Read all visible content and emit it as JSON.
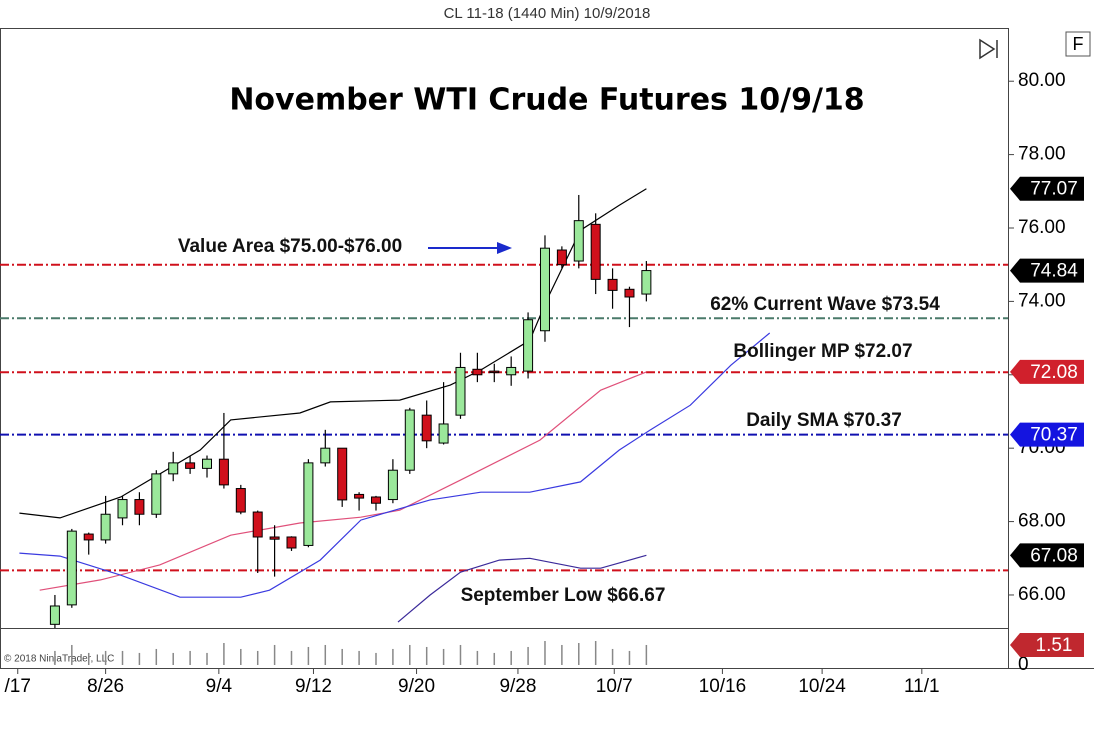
{
  "header": {
    "title": "CL 11-18 (1440 Min)  10/9/2018",
    "copyright": "© 2018 NinjaTrader, LLC",
    "button": "F"
  },
  "chart_data": [
    {
      "type": "candlestick",
      "title": "November WTI Crude Futures 10/9/18",
      "x": [
        2,
        3,
        4,
        5,
        6,
        7,
        8,
        9,
        10,
        11,
        12,
        13,
        14,
        15,
        16,
        17,
        18,
        19,
        20,
        21,
        22,
        23,
        24,
        25,
        26,
        27,
        28,
        29,
        30,
        31,
        32,
        33,
        34,
        35,
        36,
        37
      ],
      "open": [
        65.2,
        65.73,
        67.66,
        67.5,
        68.1,
        68.6,
        68.2,
        69.3,
        69.6,
        69.45,
        69.7,
        68.9,
        68.26,
        67.58,
        67.58,
        67.35,
        69.6,
        70.0,
        68.74,
        68.67,
        68.6,
        69.4,
        70.9,
        70.14,
        70.9,
        72.15,
        72.1,
        72.0,
        72.1,
        73.2,
        75.4,
        75.1,
        76.1,
        74.6,
        74.33,
        74.2
      ],
      "high": [
        66.0,
        67.8,
        67.7,
        68.7,
        68.7,
        68.8,
        69.4,
        69.9,
        69.8,
        69.8,
        70.96,
        69.0,
        68.3,
        67.9,
        67.6,
        69.7,
        70.5,
        70.0,
        68.8,
        68.7,
        69.7,
        71.1,
        71.3,
        71.8,
        72.6,
        72.6,
        72.3,
        72.5,
        73.7,
        75.8,
        75.5,
        76.9,
        76.4,
        74.9,
        74.4,
        75.1
      ],
      "low": [
        65.1,
        65.65,
        67.1,
        67.4,
        67.9,
        67.9,
        68.1,
        69.1,
        69.3,
        69.2,
        68.9,
        68.2,
        66.6,
        66.5,
        67.2,
        67.3,
        69.5,
        68.4,
        68.3,
        68.3,
        68.5,
        69.3,
        70.0,
        70.1,
        70.8,
        71.8,
        71.8,
        71.7,
        71.9,
        72.9,
        74.9,
        74.9,
        74.2,
        73.8,
        73.3,
        74.0
      ],
      "close": [
        65.7,
        67.74,
        67.5,
        68.2,
        68.6,
        68.2,
        69.3,
        69.6,
        69.45,
        69.7,
        69.0,
        68.26,
        67.58,
        67.52,
        67.28,
        69.6,
        70.0,
        68.59,
        68.64,
        68.5,
        69.4,
        71.04,
        70.2,
        70.66,
        72.2,
        72.0,
        72.06,
        72.2,
        73.5,
        75.45,
        75.0,
        76.2,
        74.6,
        74.3,
        74.12,
        74.84
      ],
      "up_color": "#9be89b",
      "down_color": "#d0101c",
      "xlim": [
        -1.25,
        58.4
      ],
      "xticks": [
        {
          "value": -0.2,
          "label": "/17"
        },
        {
          "value": 5,
          "label": "8/26"
        },
        {
          "value": 11.7,
          "label": "9/4"
        },
        {
          "value": 17.3,
          "label": "9/12"
        },
        {
          "value": 23.4,
          "label": "9/20"
        },
        {
          "value": 29.4,
          "label": "9/28"
        },
        {
          "value": 35.1,
          "label": "10/7"
        },
        {
          "value": 41.5,
          "label": "10/16"
        },
        {
          "value": 47.4,
          "label": "10/24"
        },
        {
          "value": 53.3,
          "label": "11/1"
        }
      ],
      "ylim": [
        65.1,
        81.45
      ],
      "yticks": [
        {
          "value": 66,
          "label": "66.00"
        },
        {
          "value": 68,
          "label": "68.00"
        },
        {
          "value": 70,
          "label": "70.00"
        },
        {
          "value": 72,
          "label": "72.00"
        },
        {
          "value": 74,
          "label": "74.00"
        },
        {
          "value": 76,
          "label": "76.00"
        },
        {
          "value": 78,
          "label": "78.00"
        },
        {
          "value": 80,
          "label": "80.00"
        }
      ],
      "lines": [
        {
          "color": "#000000",
          "x": [
            -0.1,
            2.3,
            5.9,
            10.6,
            12.4,
            16.5,
            18.3,
            22.4,
            25.4,
            27.2,
            30.1,
            31.1,
            33.1,
            35.4,
            37
          ],
          "values": [
            68.23,
            68.1,
            68.67,
            69.95,
            70.77,
            70.96,
            71.26,
            71.31,
            71.72,
            72.13,
            72.94,
            74.03,
            75.94,
            76.62,
            77.07
          ]
        },
        {
          "color": "#e0507a",
          "x": [
            1.1,
            4.7,
            8.2,
            12.4,
            16.5,
            20.1,
            22.4,
            26,
            30.7,
            34.3,
            37
          ],
          "values": [
            66.13,
            66.41,
            66.82,
            67.63,
            67.96,
            68.12,
            68.31,
            69.13,
            70.22,
            71.58,
            72.08
          ]
        },
        {
          "color": "#3a3ae0",
          "x": [
            -0.1,
            2.3,
            5.9,
            9.4,
            13,
            14.7,
            17.7,
            20.1,
            22.1,
            24.2,
            27.2,
            30.1,
            33.1,
            35.4,
            37.2,
            39.6,
            42,
            44.3
          ],
          "values": [
            67.14,
            67.06,
            66.54,
            65.94,
            65.94,
            66.13,
            66.95,
            68.04,
            68.31,
            68.59,
            68.8,
            68.8,
            69.08,
            69.95,
            70.49,
            71.17,
            72.26,
            73.14
          ]
        },
        {
          "color": "#3b2a9a",
          "x": [
            22.3,
            24.2,
            26,
            28.3,
            30.1,
            33.1,
            34.3,
            37
          ],
          "values": [
            65.26,
            66.0,
            66.62,
            66.95,
            67.0,
            66.73,
            66.73,
            67.08
          ]
        }
      ],
      "levels": [
        {
          "label": "Value Area $75.00-$76.00",
          "value": 75,
          "color": "#d0101c"
        },
        {
          "label": "62% Current Wave $73.54",
          "value": 73.54,
          "color": "#4a7a6a"
        },
        {
          "label": "Bollinger MP $72.07",
          "value": 72.07,
          "color": "#d0101c"
        },
        {
          "label": "Daily SMA $70.37",
          "value": 70.37,
          "color": "#1010b0"
        },
        {
          "label": "September Low $66.67",
          "value": 66.67,
          "color": "#d0101c"
        }
      ],
      "markers": [
        {
          "value": 77.07,
          "color": "#000000"
        },
        {
          "value": 74.84,
          "color": "#000000"
        },
        {
          "value": 72.08,
          "color": "#d0202c"
        },
        {
          "value": 70.37,
          "color": "#1414e0"
        },
        {
          "value": 67.08,
          "color": "#000000"
        }
      ]
    },
    {
      "type": "bar",
      "color": "#888888",
      "x": [
        2,
        3,
        4,
        5,
        6,
        7,
        8,
        9,
        10,
        11,
        12,
        13,
        14,
        15,
        16,
        17,
        18,
        19,
        20,
        21,
        22,
        23,
        24,
        25,
        26,
        27,
        28,
        29,
        30,
        31,
        32,
        33,
        34,
        35,
        36,
        37
      ],
      "values": [
        1.06,
        1.51,
        0.91,
        1.06,
        1.06,
        0.91,
        1.21,
        0.91,
        1.06,
        0.91,
        1.66,
        1.21,
        1.06,
        1.51,
        1.06,
        1.36,
        1.51,
        1.21,
        1.06,
        0.91,
        1.21,
        1.51,
        1.36,
        1.21,
        1.51,
        1.06,
        0.91,
        1.06,
        1.36,
        1.81,
        1.51,
        1.66,
        1.81,
        1.21,
        1.06,
        1.51
      ],
      "ylim": [
        0,
        2.79
      ],
      "yticks": [
        0
      ],
      "markers": [
        {
          "value": 1.51,
          "color": "#c0282f"
        }
      ]
    }
  ]
}
